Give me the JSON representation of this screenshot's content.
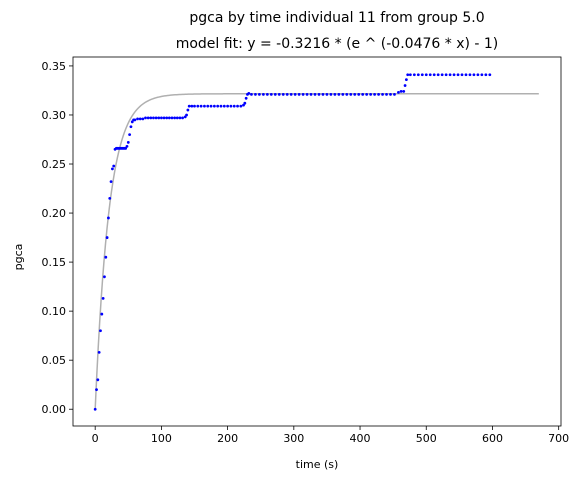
{
  "chart_data": {
    "type": "scatter",
    "title": "pgca by time individual 11 from group 5.0",
    "subtitle": "model fit: y = -0.3216 * (e ^ (-0.0476 * x) - 1)",
    "xlabel": "time (s)",
    "ylabel": "pgca",
    "xlim": [
      -33.5,
      703.5
    ],
    "ylim": [
      -0.0171,
      0.3591
    ],
    "x_ticks": [
      0,
      100,
      200,
      300,
      400,
      500,
      600,
      700
    ],
    "y_ticks": [
      0.0,
      0.05,
      0.1,
      0.15,
      0.2,
      0.25,
      0.3,
      0.35
    ],
    "x_tick_labels": [
      "0",
      "100",
      "200",
      "300",
      "400",
      "500",
      "600",
      "700"
    ],
    "y_tick_labels": [
      "0.00",
      "0.05",
      "0.10",
      "0.15",
      "0.20",
      "0.25",
      "0.30",
      "0.35"
    ],
    "grid": false,
    "data_color": "#0000ff",
    "fit_color": "#b0b0b0",
    "fit": {
      "a": 0.3216,
      "b": 0.0476,
      "x_range": [
        0,
        670
      ]
    },
    "observed_points": [
      [
        0,
        0.0
      ],
      [
        2,
        0.02
      ],
      [
        4,
        0.03
      ],
      [
        6,
        0.058
      ],
      [
        8,
        0.08
      ],
      [
        10,
        0.097
      ],
      [
        12,
        0.113
      ],
      [
        14,
        0.135
      ],
      [
        16,
        0.155
      ],
      [
        18,
        0.175
      ],
      [
        20,
        0.195
      ],
      [
        22,
        0.215
      ],
      [
        24,
        0.232
      ],
      [
        26,
        0.245
      ],
      [
        28,
        0.248
      ],
      [
        30,
        0.265
      ],
      [
        32,
        0.266
      ],
      [
        34,
        0.266
      ],
      [
        36,
        0.266
      ],
      [
        38,
        0.266
      ],
      [
        40,
        0.266
      ],
      [
        42,
        0.266
      ],
      [
        44,
        0.266
      ],
      [
        46,
        0.266
      ],
      [
        48,
        0.268
      ],
      [
        50,
        0.272
      ],
      [
        52,
        0.28
      ],
      [
        54,
        0.288
      ],
      [
        56,
        0.293
      ],
      [
        58,
        0.295
      ],
      [
        60,
        0.295
      ],
      [
        64,
        0.296
      ],
      [
        68,
        0.296
      ],
      [
        72,
        0.296
      ],
      [
        76,
        0.297
      ],
      [
        80,
        0.297
      ],
      [
        84,
        0.297
      ],
      [
        88,
        0.297
      ],
      [
        92,
        0.297
      ],
      [
        96,
        0.297
      ],
      [
        100,
        0.297
      ],
      [
        104,
        0.297
      ],
      [
        108,
        0.297
      ],
      [
        112,
        0.297
      ],
      [
        116,
        0.297
      ],
      [
        120,
        0.297
      ],
      [
        124,
        0.297
      ],
      [
        128,
        0.297
      ],
      [
        132,
        0.297
      ],
      [
        136,
        0.298
      ],
      [
        138,
        0.3
      ],
      [
        140,
        0.305
      ],
      [
        142,
        0.309
      ],
      [
        146,
        0.309
      ],
      [
        150,
        0.309
      ],
      [
        155,
        0.309
      ],
      [
        160,
        0.309
      ],
      [
        165,
        0.309
      ],
      [
        170,
        0.309
      ],
      [
        175,
        0.309
      ],
      [
        180,
        0.309
      ],
      [
        185,
        0.309
      ],
      [
        190,
        0.309
      ],
      [
        195,
        0.309
      ],
      [
        200,
        0.309
      ],
      [
        205,
        0.309
      ],
      [
        210,
        0.309
      ],
      [
        215,
        0.309
      ],
      [
        220,
        0.309
      ],
      [
        224,
        0.31
      ],
      [
        226,
        0.312
      ],
      [
        228,
        0.317
      ],
      [
        230,
        0.321
      ],
      [
        232,
        0.322
      ],
      [
        236,
        0.321
      ],
      [
        242,
        0.321
      ],
      [
        248,
        0.321
      ],
      [
        254,
        0.321
      ],
      [
        260,
        0.321
      ],
      [
        266,
        0.321
      ],
      [
        272,
        0.321
      ],
      [
        278,
        0.321
      ],
      [
        284,
        0.321
      ],
      [
        290,
        0.321
      ],
      [
        296,
        0.321
      ],
      [
        302,
        0.321
      ],
      [
        308,
        0.321
      ],
      [
        314,
        0.321
      ],
      [
        320,
        0.321
      ],
      [
        326,
        0.321
      ],
      [
        332,
        0.321
      ],
      [
        338,
        0.321
      ],
      [
        344,
        0.321
      ],
      [
        350,
        0.321
      ],
      [
        356,
        0.321
      ],
      [
        362,
        0.321
      ],
      [
        368,
        0.321
      ],
      [
        374,
        0.321
      ],
      [
        380,
        0.321
      ],
      [
        386,
        0.321
      ],
      [
        392,
        0.321
      ],
      [
        398,
        0.321
      ],
      [
        404,
        0.321
      ],
      [
        410,
        0.321
      ],
      [
        416,
        0.321
      ],
      [
        422,
        0.321
      ],
      [
        428,
        0.321
      ],
      [
        434,
        0.321
      ],
      [
        440,
        0.321
      ],
      [
        446,
        0.321
      ],
      [
        452,
        0.321
      ],
      [
        458,
        0.323
      ],
      [
        462,
        0.324
      ],
      [
        466,
        0.324
      ],
      [
        468,
        0.33
      ],
      [
        470,
        0.336
      ],
      [
        472,
        0.341
      ],
      [
        476,
        0.341
      ],
      [
        482,
        0.341
      ],
      [
        488,
        0.341
      ],
      [
        494,
        0.341
      ],
      [
        500,
        0.341
      ],
      [
        506,
        0.341
      ],
      [
        512,
        0.341
      ],
      [
        518,
        0.341
      ],
      [
        524,
        0.341
      ],
      [
        530,
        0.341
      ],
      [
        536,
        0.341
      ],
      [
        542,
        0.341
      ],
      [
        548,
        0.341
      ],
      [
        554,
        0.341
      ],
      [
        560,
        0.341
      ],
      [
        566,
        0.341
      ],
      [
        572,
        0.341
      ],
      [
        578,
        0.341
      ],
      [
        584,
        0.341
      ],
      [
        590,
        0.341
      ],
      [
        596,
        0.341
      ]
    ]
  }
}
